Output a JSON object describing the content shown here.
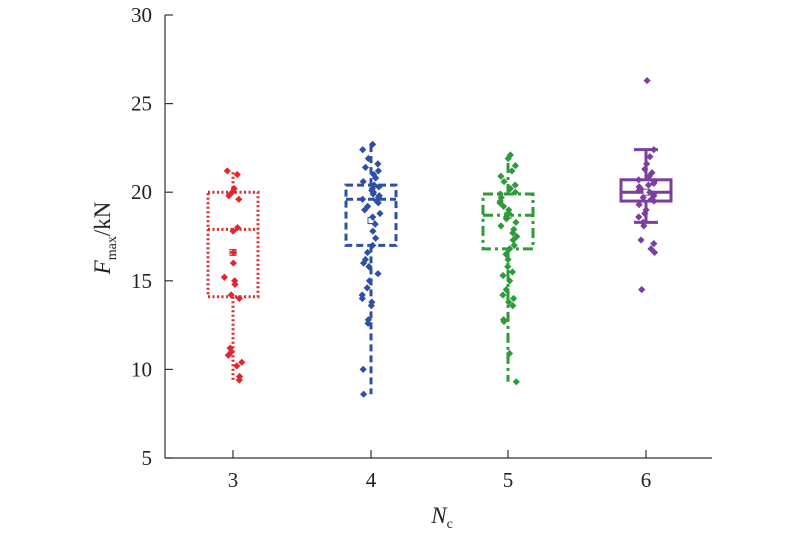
{
  "chart_data": {
    "type": "box",
    "xlabel": {
      "main": "N",
      "sub": "c"
    },
    "ylabel": {
      "main": "F",
      "sub": "max",
      "unit": "/kN"
    },
    "ylim": [
      5,
      30
    ],
    "yticks": [
      "5",
      "10",
      "15",
      "20",
      "25",
      "30"
    ],
    "grid": false,
    "legend": "none",
    "categories": [
      "3",
      "4",
      "5",
      "6"
    ],
    "series": [
      {
        "category": "3",
        "color": "#e0262e",
        "dash": "dotted",
        "q1": 14.1,
        "median": 17.9,
        "q3": 20.0,
        "mean": 16.6,
        "whisker_low": 9.4,
        "whisker_high": 21.2,
        "points": [
          21.2,
          21.0,
          20.2,
          20.0,
          19.8,
          19.6,
          18.0,
          17.8,
          16.6,
          16.0,
          15.2,
          15.0,
          14.8,
          14.2,
          14.0,
          11.2,
          11.0,
          10.8,
          10.4,
          10.2,
          9.6,
          9.4
        ]
      },
      {
        "category": "4",
        "color": "#2e4fa6",
        "dash": "dashed",
        "q1": 17.0,
        "median": 19.6,
        "q3": 20.4,
        "mean": 18.4,
        "whisker_low": 8.6,
        "whisker_high": 22.7,
        "points": [
          22.7,
          22.4,
          21.9,
          21.6,
          21.4,
          21.2,
          21.0,
          20.8,
          20.6,
          20.4,
          20.3,
          20.2,
          20.1,
          20.0,
          19.9,
          19.8,
          19.7,
          19.6,
          19.5,
          19.4,
          19.2,
          19.0,
          18.8,
          18.6,
          18.2,
          17.8,
          17.4,
          17.0,
          16.6,
          16.2,
          16.0,
          15.8,
          15.4,
          15.0,
          14.6,
          14.2,
          14.0,
          13.8,
          13.6,
          12.8,
          12.6,
          10.0,
          8.6
        ]
      },
      {
        "category": "5",
        "color": "#2e9a3a",
        "dash": "dashdot",
        "q1": 16.8,
        "median": 18.7,
        "q3": 19.9,
        "mean": 18.7,
        "whisker_low": 9.3,
        "whisker_high": 22.1,
        "points": [
          22.1,
          21.9,
          21.5,
          21.2,
          20.9,
          20.6,
          20.4,
          20.2,
          20.0,
          19.9,
          19.7,
          19.5,
          19.4,
          19.2,
          19.0,
          18.8,
          18.6,
          18.5,
          18.3,
          18.1,
          17.9,
          17.7,
          17.5,
          17.3,
          17.0,
          16.8,
          16.5,
          16.2,
          15.8,
          15.5,
          15.3,
          15.0,
          14.5,
          14.2,
          14.0,
          13.8,
          13.6,
          12.8,
          12.7,
          10.9,
          9.3
        ]
      },
      {
        "category": "6",
        "color": "#7b3fa0",
        "dash": "solid",
        "q1": 19.5,
        "median": 20.0,
        "q3": 20.7,
        "mean": 20.0,
        "whisker_low": 18.3,
        "whisker_high": 22.4,
        "points": [
          26.3,
          22.4,
          22.0,
          21.6,
          21.3,
          21.1,
          20.9,
          20.7,
          20.6,
          20.5,
          20.4,
          20.3,
          20.2,
          20.1,
          20.0,
          19.9,
          19.8,
          19.7,
          19.6,
          19.5,
          19.3,
          19.0,
          18.8,
          18.6,
          18.3,
          18.1,
          17.3,
          17.1,
          16.8,
          16.6,
          14.5
        ]
      }
    ]
  }
}
